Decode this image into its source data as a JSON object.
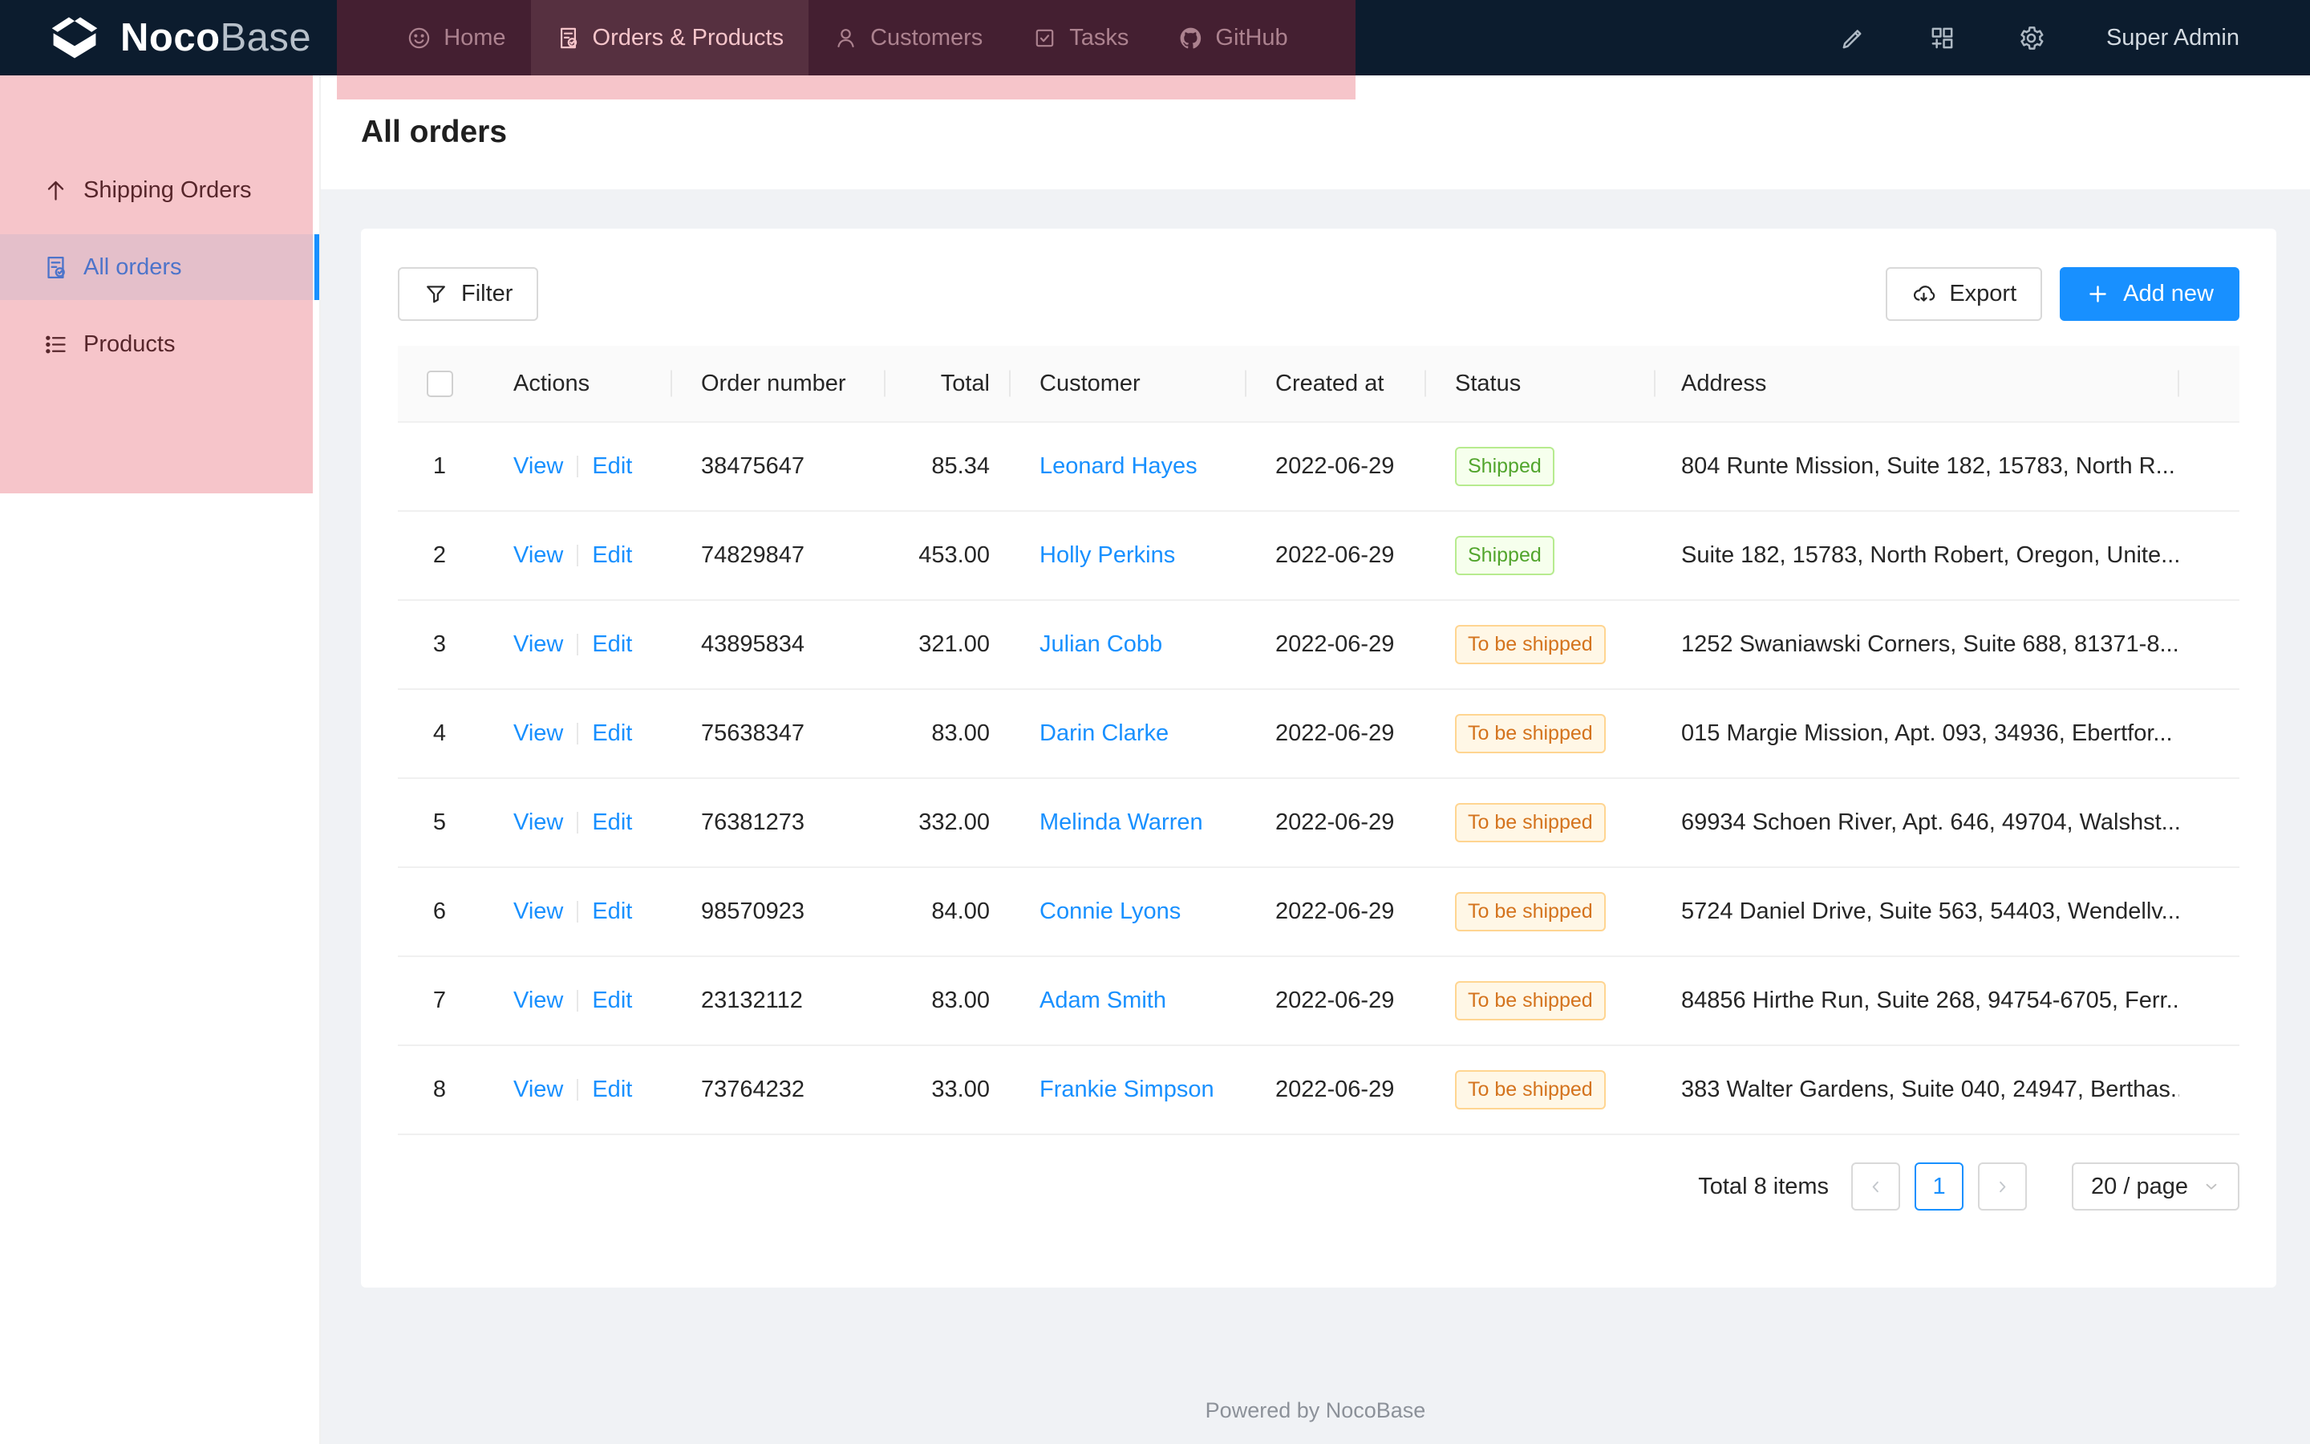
{
  "brand": {
    "bold": "Noco",
    "light": "Base"
  },
  "nav": {
    "items": [
      {
        "label": "Home",
        "icon": "smiley-icon",
        "selected": false
      },
      {
        "label": "Orders & Products",
        "icon": "orders-icon",
        "selected": true
      },
      {
        "label": "Customers",
        "icon": "person-icon",
        "selected": false
      },
      {
        "label": "Tasks",
        "icon": "task-check-icon",
        "selected": false
      },
      {
        "label": "GitHub",
        "icon": "github-icon",
        "selected": false
      }
    ],
    "right_icons": [
      "highlighter-icon",
      "blocks-plus-icon",
      "gear-icon"
    ],
    "user": "Super Admin"
  },
  "sidebar": {
    "items": [
      {
        "label": "Shipping Orders",
        "icon": "arrow-up-icon",
        "selected": false
      },
      {
        "label": "All orders",
        "icon": "order-check-icon",
        "selected": true
      },
      {
        "label": "Products",
        "icon": "list-icon",
        "selected": false
      }
    ]
  },
  "page": {
    "title": "All orders"
  },
  "toolbar": {
    "filter": "Filter",
    "export": "Export",
    "add_new": "Add new"
  },
  "table": {
    "headers": [
      "Actions",
      "Order number",
      "Total",
      "Customer",
      "Created at",
      "Status",
      "Address"
    ],
    "action_labels": [
      "View",
      "Edit"
    ],
    "rows": [
      {
        "index": "1",
        "order_number": "38475647",
        "total": "85.34",
        "customer": "Leonard Hayes",
        "created_at": "2022-06-29",
        "status": "Shipped",
        "status_type": "green",
        "address": "804 Runte Mission, Suite 182, 15783, North R..."
      },
      {
        "index": "2",
        "order_number": "74829847",
        "total": "453.00",
        "customer": "Holly Perkins",
        "created_at": "2022-06-29",
        "status": "Shipped",
        "status_type": "green",
        "address": "Suite 182, 15783, North Robert, Oregon, Unite..."
      },
      {
        "index": "3",
        "order_number": "43895834",
        "total": "321.00",
        "customer": "Julian Cobb",
        "created_at": "2022-06-29",
        "status": "To be shipped",
        "status_type": "orange",
        "address": "1252 Swaniawski Corners, Suite 688, 81371-8..."
      },
      {
        "index": "4",
        "order_number": "75638347",
        "total": "83.00",
        "customer": "Darin Clarke",
        "created_at": "2022-06-29",
        "status": "To be shipped",
        "status_type": "orange",
        "address": "015 Margie Mission, Apt. 093, 34936, Ebertfor..."
      },
      {
        "index": "5",
        "order_number": "76381273",
        "total": "332.00",
        "customer": "Melinda Warren",
        "created_at": "2022-06-29",
        "status": "To be shipped",
        "status_type": "orange",
        "address": "69934 Schoen River, Apt. 646, 49704, Walshst..."
      },
      {
        "index": "6",
        "order_number": "98570923",
        "total": "84.00",
        "customer": "Connie Lyons",
        "created_at": "2022-06-29",
        "status": "To be shipped",
        "status_type": "orange",
        "address": "5724 Daniel Drive, Suite 563, 54403, Wendellv..."
      },
      {
        "index": "7",
        "order_number": "23132112",
        "total": "83.00",
        "customer": "Adam Smith",
        "created_at": "2022-06-29",
        "status": "To be shipped",
        "status_type": "orange",
        "address": "84856 Hirthe Run, Suite 268, 94754-6705, Ferr..."
      },
      {
        "index": "8",
        "order_number": "73764232",
        "total": "33.00",
        "customer": "Frankie Simpson",
        "created_at": "2022-06-29",
        "status": "To be shipped",
        "status_type": "orange",
        "address": "383 Walter Gardens, Suite 040, 24947, Berthas..."
      }
    ]
  },
  "pagination": {
    "total_text": "Total 8 items",
    "page": "1",
    "page_size": "20 / page"
  },
  "footer": {
    "text": "Powered by NocoBase"
  },
  "colors": {
    "accent": "#1890ff",
    "navbar": "#0c1c2e",
    "highlight": "#f5222d",
    "tag_green": "#52a52d",
    "tag_orange": "#d4731d"
  }
}
